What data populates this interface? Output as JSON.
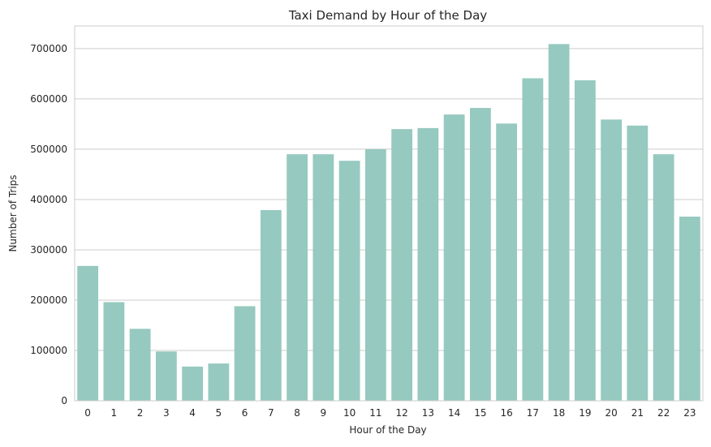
{
  "chart_data": {
    "type": "bar",
    "title": "Taxi Demand by Hour of the Day",
    "xlabel": "Hour of the Day",
    "ylabel": "Number of Trips",
    "categories": [
      "0",
      "1",
      "2",
      "3",
      "4",
      "5",
      "6",
      "7",
      "8",
      "9",
      "10",
      "11",
      "12",
      "13",
      "14",
      "15",
      "16",
      "17",
      "18",
      "19",
      "20",
      "21",
      "22",
      "23"
    ],
    "values": [
      268000,
      196000,
      143000,
      98000,
      68000,
      74000,
      188000,
      379000,
      490000,
      490000,
      477000,
      500000,
      540000,
      542000,
      569000,
      582000,
      551000,
      641000,
      709000,
      637000,
      559000,
      547000,
      490000,
      366000
    ],
    "ylim": [
      0,
      745000
    ],
    "yticks": [
      0,
      100000,
      200000,
      300000,
      400000,
      500000,
      600000,
      700000
    ],
    "ytick_labels": [
      "0",
      "100000",
      "200000",
      "300000",
      "400000",
      "500000",
      "600000",
      "700000"
    ],
    "grid": "horizontal",
    "legend": "none",
    "colors": {
      "bar": "#96c9bf",
      "grid": "#cccccc",
      "frame": "#cccccc",
      "text": "#262626"
    }
  }
}
